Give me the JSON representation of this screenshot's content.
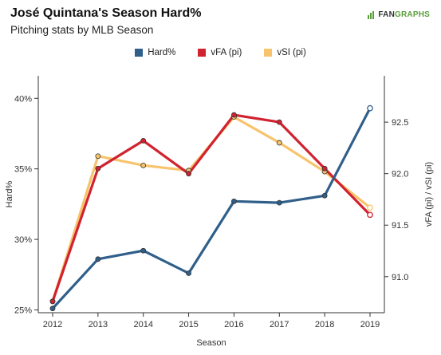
{
  "header": {
    "title": "José Quintana's Season Hard%",
    "subtitle": "Pitching stats by MLB Season",
    "logo_fan": "FAN",
    "logo_graphs": "GRAPHS"
  },
  "chart_data": {
    "type": "line",
    "title": "José Quintana's Season Hard%",
    "subtitle": "Pitching stats by MLB Season",
    "xlabel": "Season",
    "ylabel_left": "Hard%",
    "ylabel_right": "vFA (pi) / vSI (pi)",
    "x": [
      2012,
      2013,
      2014,
      2015,
      2016,
      2017,
      2018,
      2019
    ],
    "y_left_ticks": [
      25,
      30,
      35,
      40
    ],
    "y_left_tick_labels": [
      "25%",
      "30%",
      "35%",
      "40%"
    ],
    "y_left_range": [
      24.8,
      41.6
    ],
    "y_right_ticks": [
      91.0,
      91.5,
      92.0,
      92.5
    ],
    "y_right_tick_labels": [
      "91.0",
      "91.5",
      "92.0",
      "92.5"
    ],
    "y_right_range": [
      90.65,
      92.95
    ],
    "legend_position": "top-center",
    "grid": false,
    "series": [
      {
        "name": "Hard%",
        "axis": "left",
        "color": "#2f5f8a",
        "values": [
          25.1,
          28.6,
          29.2,
          27.6,
          32.7,
          32.6,
          33.1,
          39.3
        ],
        "last_point_hollow": true
      },
      {
        "name": "vFA (pi)",
        "axis": "right",
        "color": "#d1222f",
        "values": [
          90.76,
          92.05,
          92.32,
          92.0,
          92.57,
          92.5,
          92.05,
          91.6
        ],
        "last_point_hollow": true
      },
      {
        "name": "vSI (pi)",
        "axis": "right",
        "color": "#f7c46c",
        "values": [
          90.76,
          92.17,
          92.08,
          92.03,
          92.55,
          92.3,
          92.02,
          91.67
        ],
        "last_point_hollow": true
      }
    ]
  }
}
